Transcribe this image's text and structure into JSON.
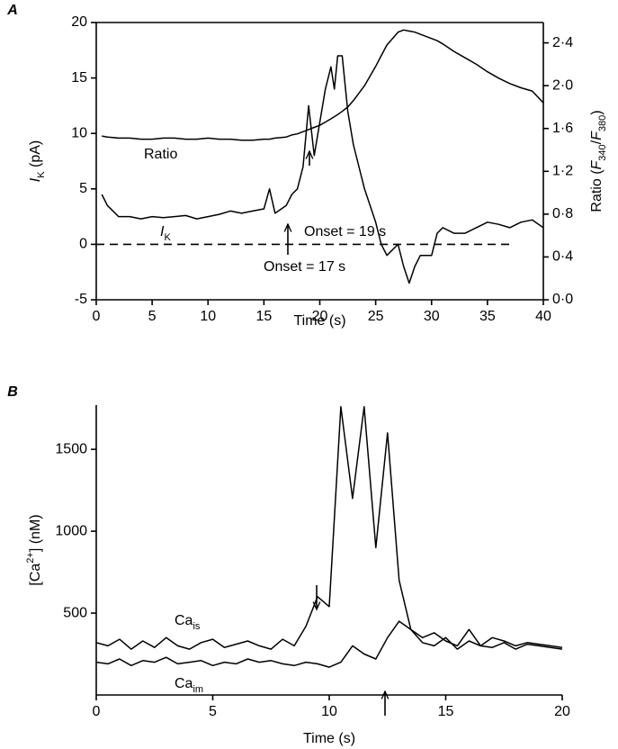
{
  "chart_data": [
    {
      "type": "line",
      "panel": "A",
      "xlabel": "Time (s)",
      "ylabel": [
        "I",
        "K",
        " (pA)"
      ],
      "y2label": [
        "Ratio (",
        "F",
        "340",
        "/",
        "F",
        "380",
        ")"
      ],
      "xlim": [
        0,
        40
      ],
      "xticks": [
        0,
        5,
        10,
        15,
        20,
        25,
        30,
        35,
        40
      ],
      "ylim": [
        -5,
        20
      ],
      "yticks": [
        -5,
        0,
        5,
        10,
        15,
        20
      ],
      "y2lim": [
        0,
        2.59
      ],
      "y2ticks": [
        {
          "value": 0,
          "label": "0·0"
        },
        {
          "value": 0.4,
          "label": "0·4"
        },
        {
          "value": 0.8,
          "label": "0·8"
        },
        {
          "value": 1.2,
          "label": "1·2"
        },
        {
          "value": 1.6,
          "label": "1·6"
        },
        {
          "value": 2.0,
          "label": "2·0"
        },
        {
          "value": 2.4,
          "label": "2·4"
        }
      ],
      "hline": 0,
      "annotations": [
        "Onset = 19 s",
        "Onset = 17 s"
      ],
      "x": [
        0.5,
        1,
        2,
        3,
        4,
        5,
        6,
        7,
        8,
        9,
        10,
        11,
        12,
        13,
        14,
        15,
        15.5,
        16,
        17,
        17.5,
        18,
        18.5,
        19,
        19.5,
        20,
        20.5,
        21,
        21.3,
        21.6,
        22,
        22.5,
        23,
        24,
        25,
        25.5,
        26,
        27,
        27.5,
        28,
        28.5,
        29,
        30,
        30.5,
        31,
        32,
        33,
        34,
        35,
        36,
        37,
        38,
        39,
        40
      ],
      "series": [
        {
          "name": [
            "I",
            "K"
          ],
          "color": "#000000",
          "values": [
            4.5,
            3.5,
            2.5,
            2.5,
            2.3,
            2.5,
            2.4,
            2.5,
            2.6,
            2.3,
            2.5,
            2.7,
            3.0,
            2.8,
            3.0,
            3.2,
            5.0,
            2.8,
            3.5,
            4.5,
            5.0,
            7.0,
            12.5,
            8.0,
            11.0,
            14.0,
            16.0,
            14.0,
            17.0,
            17.0,
            12.0,
            9.0,
            5.0,
            2.0,
            0.0,
            -1.0,
            0.0,
            -2.0,
            -3.5,
            -2.0,
            -1.0,
            -1.0,
            1.0,
            1.5,
            1.0,
            1.0,
            1.5,
            2.0,
            1.8,
            1.5,
            2.0,
            2.2,
            1.5
          ]
        },
        {
          "name": [
            "Ratio"
          ],
          "color": "#000000",
          "axis": "y2",
          "values": [
            1.53,
            1.52,
            1.51,
            1.51,
            1.5,
            1.5,
            1.51,
            1.51,
            1.5,
            1.5,
            1.51,
            1.5,
            1.5,
            1.49,
            1.49,
            1.5,
            1.5,
            1.51,
            1.52,
            1.54,
            1.55,
            1.57,
            1.59,
            1.61,
            1.63,
            1.66,
            1.69,
            1.71,
            1.73,
            1.76,
            1.8,
            1.86,
            2.0,
            2.18,
            2.28,
            2.38,
            2.5,
            2.52,
            2.51,
            2.5,
            2.48,
            2.44,
            2.42,
            2.39,
            2.32,
            2.26,
            2.2,
            2.13,
            2.07,
            2.02,
            1.98,
            1.95,
            1.84
          ]
        }
      ]
    },
    {
      "type": "line",
      "panel": "B",
      "xlabel": "Time (s)",
      "ylabel": [
        "[Ca",
        "2+",
        "] (nM)"
      ],
      "xlim": [
        0,
        20
      ],
      "xticks": [
        0,
        5,
        10,
        15,
        20
      ],
      "ylim": [
        0,
        1770
      ],
      "yticks": [
        500,
        1000,
        1500
      ],
      "x": [
        0,
        0.5,
        1,
        1.5,
        2,
        2.5,
        3,
        3.5,
        4,
        4.5,
        5,
        5.5,
        6,
        6.5,
        7,
        7.5,
        8,
        8.5,
        9,
        9.5,
        10,
        10.5,
        11,
        11.5,
        12,
        12.5,
        13,
        13.5,
        14,
        14.5,
        15,
        15.5,
        16,
        16.5,
        17,
        17.5,
        18,
        18.5,
        19,
        19.5,
        20
      ],
      "series": [
        {
          "name": [
            "Ca",
            "is"
          ],
          "color": "#000000",
          "values": [
            320,
            300,
            340,
            280,
            330,
            290,
            350,
            300,
            280,
            320,
            340,
            290,
            310,
            330,
            300,
            280,
            340,
            300,
            420,
            600,
            540,
            1760,
            1200,
            1760,
            900,
            1600,
            700,
            400,
            320,
            300,
            350,
            280,
            330,
            300,
            290,
            320,
            280,
            310,
            300,
            290,
            280
          ]
        },
        {
          "name": [
            "Ca",
            "im"
          ],
          "color": "#000000",
          "values": [
            200,
            190,
            220,
            180,
            210,
            200,
            230,
            190,
            200,
            210,
            180,
            200,
            190,
            220,
            200,
            210,
            190,
            180,
            200,
            190,
            170,
            200,
            300,
            250,
            220,
            350,
            450,
            400,
            350,
            380,
            330,
            300,
            400,
            300,
            350,
            330,
            300,
            320,
            310,
            300,
            290
          ]
        }
      ]
    }
  ]
}
